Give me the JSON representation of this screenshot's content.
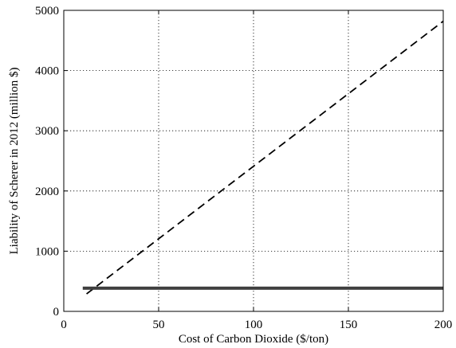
{
  "chart_data": {
    "type": "line",
    "xlabel": "Cost of Carbon Dioxide ($/ton)",
    "ylabel": "Liability of Scherer in 2012 (million $)",
    "xlim": [
      0,
      200
    ],
    "ylim": [
      0,
      5000
    ],
    "x_ticks": [
      0,
      50,
      100,
      150,
      200
    ],
    "y_ticks": [
      0,
      1000,
      2000,
      3000,
      4000,
      5000
    ],
    "x_tick_labels": [
      "0",
      "50",
      "100",
      "150",
      "200"
    ],
    "y_tick_labels": [
      "0",
      "1000",
      "2000",
      "3000",
      "4000",
      "5000"
    ],
    "grid": true,
    "grid_style": "dotted",
    "series": [
      {
        "style": "dashed",
        "color": "#000000",
        "x": [
          12,
          200
        ],
        "y": [
          290,
          4820
        ]
      },
      {
        "style": "solid-thick",
        "color": "#404040",
        "x": [
          10,
          200
        ],
        "y": [
          385,
          385
        ]
      }
    ]
  }
}
